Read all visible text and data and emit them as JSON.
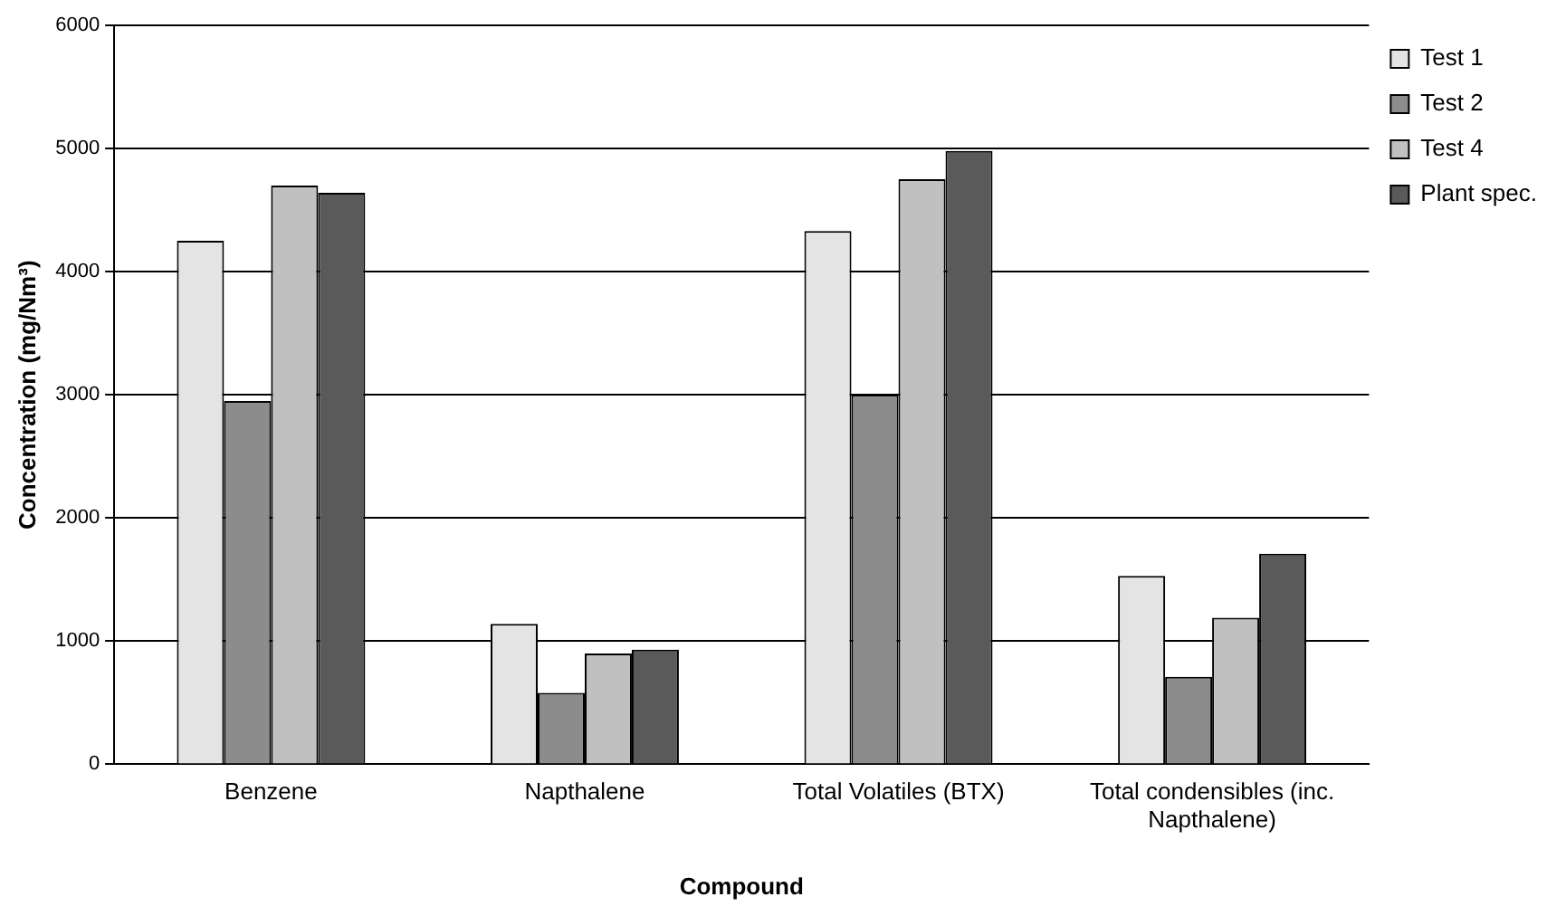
{
  "chart_data": {
    "type": "bar",
    "xlabel": "Compound",
    "ylabel": "Concentration (mg/Nm³)",
    "categories": [
      "Benzene",
      "Napthalene",
      "Total Volatiles (BTX)",
      "Total condensibles (inc. Napthalene)"
    ],
    "series": [
      {
        "name": "Test 1",
        "color": "#e4e4e4",
        "values": [
          4250,
          1140,
          4330,
          1530
        ]
      },
      {
        "name": "Test 2",
        "color": "#8c8c8c",
        "values": [
          2950,
          580,
          3000,
          710
        ]
      },
      {
        "name": "Test 4",
        "color": "#c0c0c0",
        "values": [
          4700,
          900,
          4750,
          1190
        ]
      },
      {
        "name": "Plant spec.",
        "color": "#5a5a5a",
        "values": [
          4640,
          930,
          4980,
          1710
        ]
      }
    ],
    "ylim": [
      0,
      6000
    ],
    "yticks": [
      0,
      1000,
      2000,
      3000,
      4000,
      5000,
      6000
    ],
    "grid": "y",
    "legend": "top right"
  }
}
